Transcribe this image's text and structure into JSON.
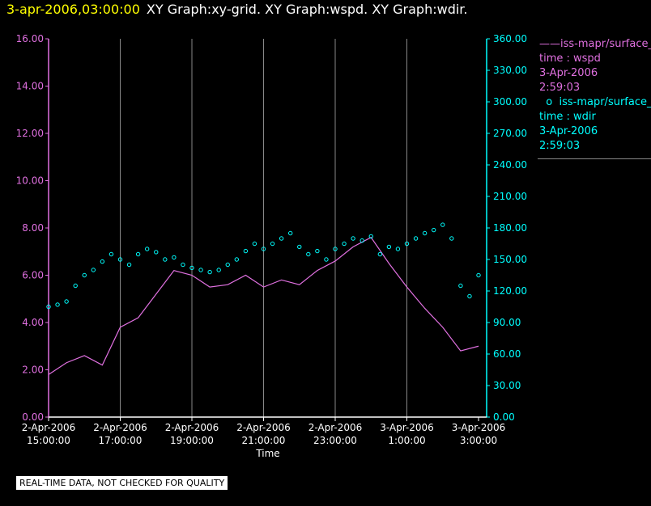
{
  "header": {
    "timestamp": "3-apr-2006,03:00:00",
    "title": "XY Graph:xy-grid.  XY Graph:wspd.  XY Graph:wdir."
  },
  "legend": [
    {
      "marker": "line",
      "name": "iss-mapr/surface_r",
      "field": "time : wspd",
      "date": "3-Apr-2006",
      "time": "2:59:03",
      "color": "#e070e0"
    },
    {
      "marker": "point",
      "name": "iss-mapr/surface_r",
      "field": "time : wdir",
      "date": "3-Apr-2006",
      "time": "2:59:03",
      "color": "#00ffff"
    }
  ],
  "notice": "REAL-TIME DATA, NOT CHECKED FOR QUALITY",
  "chart_data": {
    "type": "line",
    "xlabel": "Time",
    "x_ticks": [
      {
        "date": "2-Apr-2006",
        "time": "15:00:00"
      },
      {
        "date": "2-Apr-2006",
        "time": "17:00:00"
      },
      {
        "date": "2-Apr-2006",
        "time": "19:00:00"
      },
      {
        "date": "2-Apr-2006",
        "time": "21:00:00"
      },
      {
        "date": "2-Apr-2006",
        "time": "23:00:00"
      },
      {
        "date": "3-Apr-2006",
        "time": "1:00:00"
      },
      {
        "date": "3-Apr-2006",
        "time": "3:00:00"
      }
    ],
    "xlim_hours": [
      15,
      27
    ],
    "y_left": {
      "lim": [
        0,
        16
      ],
      "ticks": [
        "0.00",
        "2.00",
        "4.00",
        "6.00",
        "8.00",
        "10.00",
        "12.00",
        "14.00",
        "16.00"
      ],
      "color": "#e070e0"
    },
    "y_right": {
      "lim": [
        0,
        360
      ],
      "ticks": [
        "0.00",
        "30.00",
        "60.00",
        "90.00",
        "120.00",
        "150.00",
        "180.00",
        "210.00",
        "240.00",
        "270.00",
        "300.00",
        "330.00",
        "360.00"
      ],
      "color": "#00ffff"
    },
    "grid": "vertical",
    "series": [
      {
        "field": "wspd",
        "axis": "left",
        "style": "line",
        "color": "#e070e0",
        "x": [
          15.0,
          15.5,
          16.0,
          16.5,
          17.0,
          17.5,
          18.0,
          18.5,
          19.0,
          19.5,
          20.0,
          20.5,
          21.0,
          21.5,
          22.0,
          22.5,
          23.0,
          23.5,
          24.0,
          24.5,
          25.0,
          25.5,
          26.0,
          26.5,
          27.0
        ],
        "y": [
          1.8,
          2.3,
          2.6,
          2.2,
          3.8,
          4.2,
          5.2,
          6.2,
          6.0,
          5.5,
          5.6,
          6.0,
          5.5,
          5.8,
          5.6,
          6.2,
          6.6,
          7.2,
          7.6,
          6.5,
          5.5,
          4.6,
          3.8,
          2.8,
          3.0
        ]
      },
      {
        "field": "wdir",
        "axis": "right",
        "style": "points",
        "color": "#00ffff",
        "x": [
          15.0,
          15.25,
          15.5,
          15.75,
          16.0,
          16.25,
          16.5,
          16.75,
          17.0,
          17.25,
          17.5,
          17.75,
          18.0,
          18.25,
          18.5,
          18.75,
          19.0,
          19.25,
          19.5,
          19.75,
          20.0,
          20.25,
          20.5,
          20.75,
          21.0,
          21.25,
          21.5,
          21.75,
          22.0,
          22.25,
          22.5,
          22.75,
          23.0,
          23.25,
          23.5,
          23.75,
          24.0,
          24.25,
          24.5,
          24.75,
          25.0,
          25.25,
          25.5,
          25.75,
          26.0,
          26.25,
          26.5,
          26.75,
          27.0
        ],
        "y": [
          105,
          107,
          110,
          125,
          135,
          140,
          148,
          155,
          150,
          145,
          155,
          160,
          157,
          150,
          152,
          145,
          142,
          140,
          138,
          140,
          145,
          150,
          158,
          165,
          160,
          165,
          170,
          175,
          162,
          155,
          158,
          150,
          160,
          165,
          170,
          168,
          172,
          155,
          162,
          160,
          165,
          170,
          175,
          178,
          183,
          170,
          125,
          115,
          135
        ]
      }
    ]
  }
}
